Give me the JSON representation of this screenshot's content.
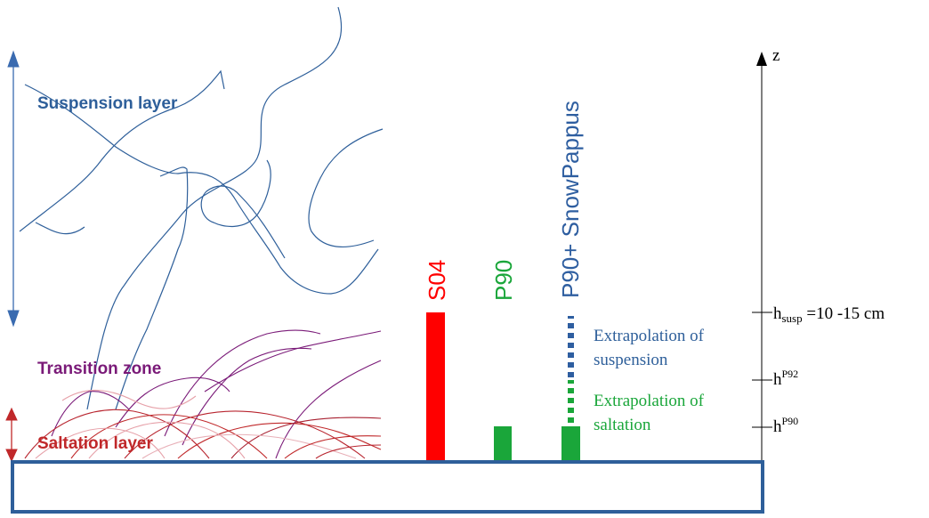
{
  "layers": {
    "suspension": "Suspension layer",
    "transition": "Transition zone",
    "saltation": "Saltation layer"
  },
  "schemes": {
    "s04": "S04",
    "p90": "P90",
    "p90_snowpappus": "P90+ SnowPappus"
  },
  "annotations": {
    "extrap_susp_line1": "Extrapolation of",
    "extrap_susp_line2": "suspension",
    "extrap_salt_line1": "Extrapolation of",
    "extrap_salt_line2": "saltation"
  },
  "axis": {
    "label": "z",
    "h_susp_base": "h",
    "h_susp_sub": "susp",
    "h_susp_value": " =10 -15 cm",
    "h_p92_base": "h",
    "h_p92_sup": "P92",
    "h_p90_base": "h",
    "h_p90_sup": "P90"
  },
  "colors": {
    "suspension": "#2e5f9a",
    "transition": "#7a1a78",
    "saltation": "#c0282a",
    "s04": "#ff0000",
    "p90": "#1aa63a",
    "snowpappus": "#2e5ea0",
    "ground_border": "#2e5f9a"
  }
}
